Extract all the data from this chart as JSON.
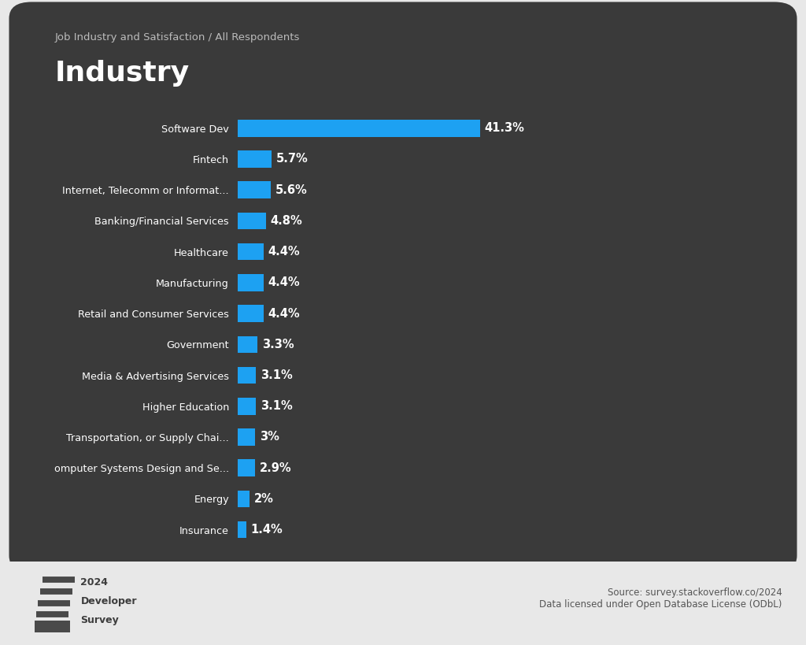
{
  "subtitle": "Job Industry and Satisfaction / All Respondents",
  "title": "Industry",
  "categories": [
    "Software Dev",
    "Fintech",
    "Internet, Telecomm or Informat...",
    "Banking/Financial Services",
    "Healthcare",
    "Manufacturing",
    "Retail and Consumer Services",
    "Government",
    "Media & Advertising Services",
    "Higher Education",
    "Transportation, or Supply Chai...",
    "omputer Systems Design and Se...",
    "Energy",
    "Insurance"
  ],
  "values": [
    41.3,
    5.7,
    5.6,
    4.8,
    4.4,
    4.4,
    4.4,
    3.3,
    3.1,
    3.1,
    3.0,
    2.9,
    2.0,
    1.4
  ],
  "labels": [
    "41.3%",
    "5.7%",
    "5.6%",
    "4.8%",
    "4.4%",
    "4.4%",
    "4.4%",
    "3.3%",
    "3.1%",
    "3.1%",
    "3%",
    "2.9%",
    "2%",
    "1.4%"
  ],
  "bar_color": "#1da1f2",
  "background_color": "#3a3a3a",
  "outer_background": "#e8e8e8",
  "text_color": "#ffffff",
  "title_color": "#ffffff",
  "subtitle_color": "#bbbbbb",
  "label_color": "#ffffff",
  "source_text": "Source: survey.stackoverflow.co/2024\nData licensed under Open Database License (ODbL)",
  "bar_height": 0.55,
  "xlim_max": 90
}
